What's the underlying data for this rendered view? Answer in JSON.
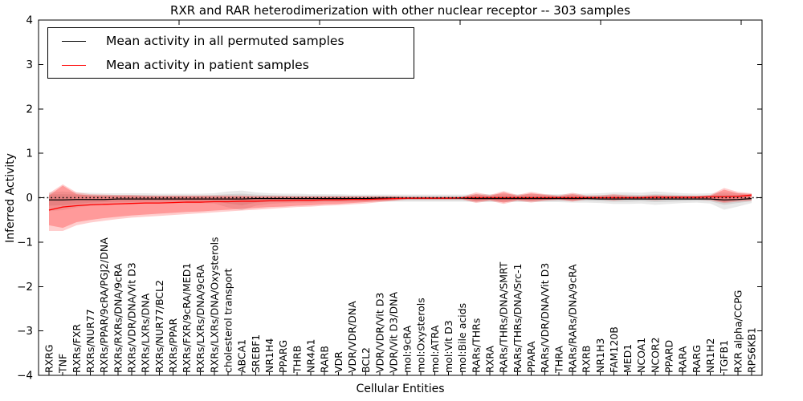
{
  "figure": {
    "title": "RXR and RAR heterodimerization with other nuclear receptor -- 303 samples",
    "xlabel": "Cellular Entities",
    "ylabel": "Inferred Activity"
  },
  "legend": {
    "items": [
      {
        "label": "Mean activity in all permuted samples",
        "color": "#000000"
      },
      {
        "label": "Mean activity in patient samples",
        "color": "#ff0000"
      }
    ]
  },
  "chart_data": {
    "type": "line",
    "title": "RXR and RAR heterodimerization with other nuclear receptor -- 303 samples",
    "xlabel": "Cellular Entities",
    "ylabel": "Inferred Activity",
    "ylim": [
      -4,
      4
    ],
    "yticks": [
      -4,
      -3,
      -2,
      -1,
      0,
      1,
      2,
      3,
      4
    ],
    "grid": false,
    "legend_position": "upper left",
    "zero_line": {
      "style": "dotted",
      "color": "#000000",
      "y": 0
    },
    "categories": [
      "RXRG",
      "TNF",
      "RXRs/FXR",
      "RXRs/NUR77",
      "RXRs/PPAR/9cRA/PGJ2/DNA",
      "RXRs/RXRs/DNA/9cRA",
      "RXRs/VDR/DNA/Vit D3",
      "RXRs/LXRs/DNA",
      "RXRs/NUR77/BCL2",
      "RXRs/PPAR",
      "RXRs/FXR/9cRA/MED1",
      "RXRs/LXRs/DNA/9cRA",
      "RXRs/LXRs/DNA/Oxysterols",
      "cholesterol transport",
      "ABCA1",
      "SREBF1",
      "NR1H4",
      "PPARG",
      "THRB",
      "NR4A1",
      "RARB",
      "VDR",
      "VDR/VDR/DNA",
      "BCL2",
      "VDR/VDR/Vit D3",
      "VDR/Vit D3/DNA",
      "mol:9cRA",
      "mol:Oxysterols",
      "mol:ATRA",
      "mol:Vit D3",
      "mol:Bile acids",
      "RARs/THRs",
      "RXRA",
      "RARs/THRs/DNA/SMRT",
      "RARs/THRs/DNA/Src-1",
      "PPARA",
      "RARs/VDR/DNA/Vit D3",
      "THRA",
      "RARs/RARs/DNA/9cRA",
      "RXRB",
      "NR1H3",
      "FAM120B",
      "MED1",
      "NCOA1",
      "NCOR2",
      "PPARD",
      "RARA",
      "RARG",
      "NR1H2",
      "TGFB1",
      "RXR alpha/CCPG",
      "RPS6KB1"
    ],
    "series": [
      {
        "name": "Mean activity in all permuted samples",
        "color": "#000000",
        "values": [
          -0.05,
          -0.05,
          -0.04,
          -0.04,
          -0.04,
          -0.03,
          -0.03,
          -0.03,
          -0.03,
          -0.03,
          -0.03,
          -0.03,
          -0.03,
          -0.03,
          -0.03,
          -0.02,
          -0.02,
          -0.02,
          -0.02,
          -0.02,
          -0.02,
          -0.02,
          -0.02,
          -0.02,
          -0.01,
          -0.01,
          -0.01,
          -0.01,
          -0.01,
          -0.01,
          -0.01,
          -0.02,
          -0.02,
          -0.02,
          -0.02,
          -0.02,
          -0.02,
          -0.02,
          -0.02,
          -0.02,
          -0.03,
          -0.03,
          -0.03,
          -0.03,
          -0.03,
          -0.03,
          -0.03,
          -0.03,
          -0.03,
          -0.05,
          -0.04,
          -0.02
        ]
      },
      {
        "name": "Mean activity in patient samples",
        "color": "#ff0000",
        "values": [
          -0.28,
          -0.21,
          -0.18,
          -0.16,
          -0.15,
          -0.14,
          -0.13,
          -0.12,
          -0.12,
          -0.11,
          -0.1,
          -0.1,
          -0.09,
          -0.09,
          -0.08,
          -0.08,
          -0.07,
          -0.07,
          -0.06,
          -0.06,
          -0.05,
          -0.05,
          -0.04,
          -0.04,
          -0.03,
          -0.02,
          -0.01,
          -0.01,
          -0.01,
          -0.01,
          0.0,
          0.0,
          0.0,
          0.0,
          0.0,
          0.0,
          0.0,
          0.0,
          0.0,
          0.0,
          0.0,
          0.0,
          0.0,
          0.0,
          0.01,
          0.01,
          0.01,
          0.01,
          0.02,
          0.02,
          0.03,
          0.06
        ]
      }
    ],
    "bands": [
      {
        "name": "permuted-range-outer",
        "color": "#999999",
        "opacity": 0.22,
        "upper": [
          0.12,
          0.14,
          0.12,
          0.11,
          0.1,
          0.1,
          0.1,
          0.1,
          0.09,
          0.09,
          0.09,
          0.09,
          0.1,
          0.14,
          0.16,
          0.12,
          0.1,
          0.09,
          0.09,
          0.08,
          0.08,
          0.08,
          0.07,
          0.07,
          0.07,
          0.07,
          0.07,
          0.07,
          0.07,
          0.07,
          0.07,
          0.08,
          0.08,
          0.08,
          0.08,
          0.08,
          0.08,
          0.08,
          0.09,
          0.09,
          0.1,
          0.12,
          0.12,
          0.11,
          0.14,
          0.12,
          0.1,
          0.09,
          0.1,
          0.12,
          0.1,
          0.09
        ],
        "lower": [
          -0.3,
          -0.28,
          -0.22,
          -0.18,
          -0.16,
          -0.15,
          -0.14,
          -0.13,
          -0.13,
          -0.12,
          -0.12,
          -0.12,
          -0.13,
          -0.22,
          -0.28,
          -0.18,
          -0.14,
          -0.12,
          -0.11,
          -0.11,
          -0.1,
          -0.1,
          -0.1,
          -0.09,
          -0.09,
          -0.09,
          -0.09,
          -0.09,
          -0.09,
          -0.09,
          -0.09,
          -0.1,
          -0.1,
          -0.1,
          -0.1,
          -0.1,
          -0.1,
          -0.1,
          -0.11,
          -0.11,
          -0.12,
          -0.14,
          -0.14,
          -0.13,
          -0.16,
          -0.14,
          -0.12,
          -0.11,
          -0.13,
          -0.27,
          -0.2,
          -0.12
        ]
      },
      {
        "name": "permuted-range-inner",
        "color": "#999999",
        "opacity": 0.28,
        "upper": [
          0.07,
          0.08,
          0.07,
          0.06,
          0.06,
          0.06,
          0.06,
          0.06,
          0.05,
          0.05,
          0.05,
          0.05,
          0.06,
          0.08,
          0.09,
          0.07,
          0.06,
          0.05,
          0.05,
          0.05,
          0.05,
          0.05,
          0.04,
          0.04,
          0.04,
          0.04,
          0.04,
          0.04,
          0.04,
          0.04,
          0.04,
          0.05,
          0.05,
          0.05,
          0.05,
          0.05,
          0.05,
          0.05,
          0.05,
          0.05,
          0.06,
          0.07,
          0.07,
          0.06,
          0.08,
          0.07,
          0.06,
          0.05,
          0.06,
          0.07,
          0.06,
          0.05
        ],
        "lower": [
          -0.18,
          -0.17,
          -0.14,
          -0.11,
          -0.1,
          -0.09,
          -0.09,
          -0.08,
          -0.08,
          -0.08,
          -0.08,
          -0.08,
          -0.08,
          -0.13,
          -0.17,
          -0.11,
          -0.09,
          -0.08,
          -0.07,
          -0.07,
          -0.07,
          -0.07,
          -0.06,
          -0.06,
          -0.06,
          -0.06,
          -0.06,
          -0.06,
          -0.06,
          -0.06,
          -0.06,
          -0.07,
          -0.07,
          -0.07,
          -0.07,
          -0.07,
          -0.07,
          -0.07,
          -0.07,
          -0.07,
          -0.08,
          -0.09,
          -0.09,
          -0.08,
          -0.1,
          -0.09,
          -0.08,
          -0.07,
          -0.08,
          -0.16,
          -0.12,
          -0.08
        ]
      },
      {
        "name": "patient-range-outer",
        "color": "#ff2222",
        "opacity": 0.22,
        "upper": [
          0.1,
          0.3,
          0.12,
          0.08,
          0.07,
          0.06,
          0.06,
          0.05,
          0.05,
          0.05,
          0.05,
          0.05,
          0.05,
          0.05,
          0.05,
          0.04,
          0.04,
          0.04,
          0.03,
          0.03,
          0.03,
          0.03,
          0.03,
          0.03,
          0.03,
          0.03,
          0.02,
          0.02,
          0.02,
          0.02,
          0.02,
          0.12,
          0.06,
          0.15,
          0.06,
          0.13,
          0.08,
          0.05,
          0.11,
          0.05,
          0.05,
          0.08,
          0.05,
          0.04,
          0.06,
          0.05,
          0.04,
          0.04,
          0.06,
          0.22,
          0.13,
          0.1
        ],
        "lower": [
          -0.75,
          -0.75,
          -0.62,
          -0.56,
          -0.52,
          -0.48,
          -0.45,
          -0.43,
          -0.41,
          -0.39,
          -0.37,
          -0.35,
          -0.33,
          -0.31,
          -0.29,
          -0.27,
          -0.25,
          -0.23,
          -0.21,
          -0.2,
          -0.18,
          -0.17,
          -0.15,
          -0.13,
          -0.1,
          -0.07,
          -0.04,
          -0.04,
          -0.04,
          -0.04,
          -0.04,
          -0.12,
          -0.07,
          -0.14,
          -0.07,
          -0.11,
          -0.07,
          -0.05,
          -0.09,
          -0.04,
          -0.04,
          -0.07,
          -0.04,
          -0.04,
          -0.06,
          -0.04,
          -0.04,
          -0.04,
          -0.06,
          -0.12,
          -0.09,
          -0.07
        ]
      },
      {
        "name": "patient-range-inner",
        "color": "#ff2222",
        "opacity": 0.3,
        "upper": [
          0.05,
          0.27,
          0.08,
          0.05,
          0.04,
          0.04,
          0.04,
          0.03,
          0.03,
          0.03,
          0.03,
          0.03,
          0.03,
          0.03,
          0.03,
          0.02,
          0.02,
          0.02,
          0.02,
          0.02,
          0.02,
          0.02,
          0.02,
          0.02,
          0.02,
          0.02,
          0.01,
          0.01,
          0.01,
          0.01,
          0.01,
          0.08,
          0.04,
          0.12,
          0.04,
          0.1,
          0.06,
          0.03,
          0.08,
          0.03,
          0.03,
          0.05,
          0.03,
          0.03,
          0.04,
          0.03,
          0.03,
          0.03,
          0.04,
          0.18,
          0.1,
          0.08
        ],
        "lower": [
          -0.62,
          -0.68,
          -0.55,
          -0.5,
          -0.46,
          -0.43,
          -0.4,
          -0.38,
          -0.36,
          -0.34,
          -0.32,
          -0.31,
          -0.29,
          -0.27,
          -0.25,
          -0.23,
          -0.21,
          -0.2,
          -0.18,
          -0.17,
          -0.15,
          -0.14,
          -0.12,
          -0.1,
          -0.08,
          -0.06,
          -0.03,
          -0.03,
          -0.03,
          -0.03,
          -0.03,
          -0.09,
          -0.05,
          -0.11,
          -0.05,
          -0.08,
          -0.05,
          -0.03,
          -0.07,
          -0.03,
          -0.03,
          -0.05,
          -0.03,
          -0.03,
          -0.04,
          -0.03,
          -0.03,
          -0.03,
          -0.04,
          -0.1,
          -0.06,
          -0.05
        ]
      }
    ],
    "top_axis_tick_values": [
      10,
      20,
      30,
      40,
      50
    ]
  }
}
